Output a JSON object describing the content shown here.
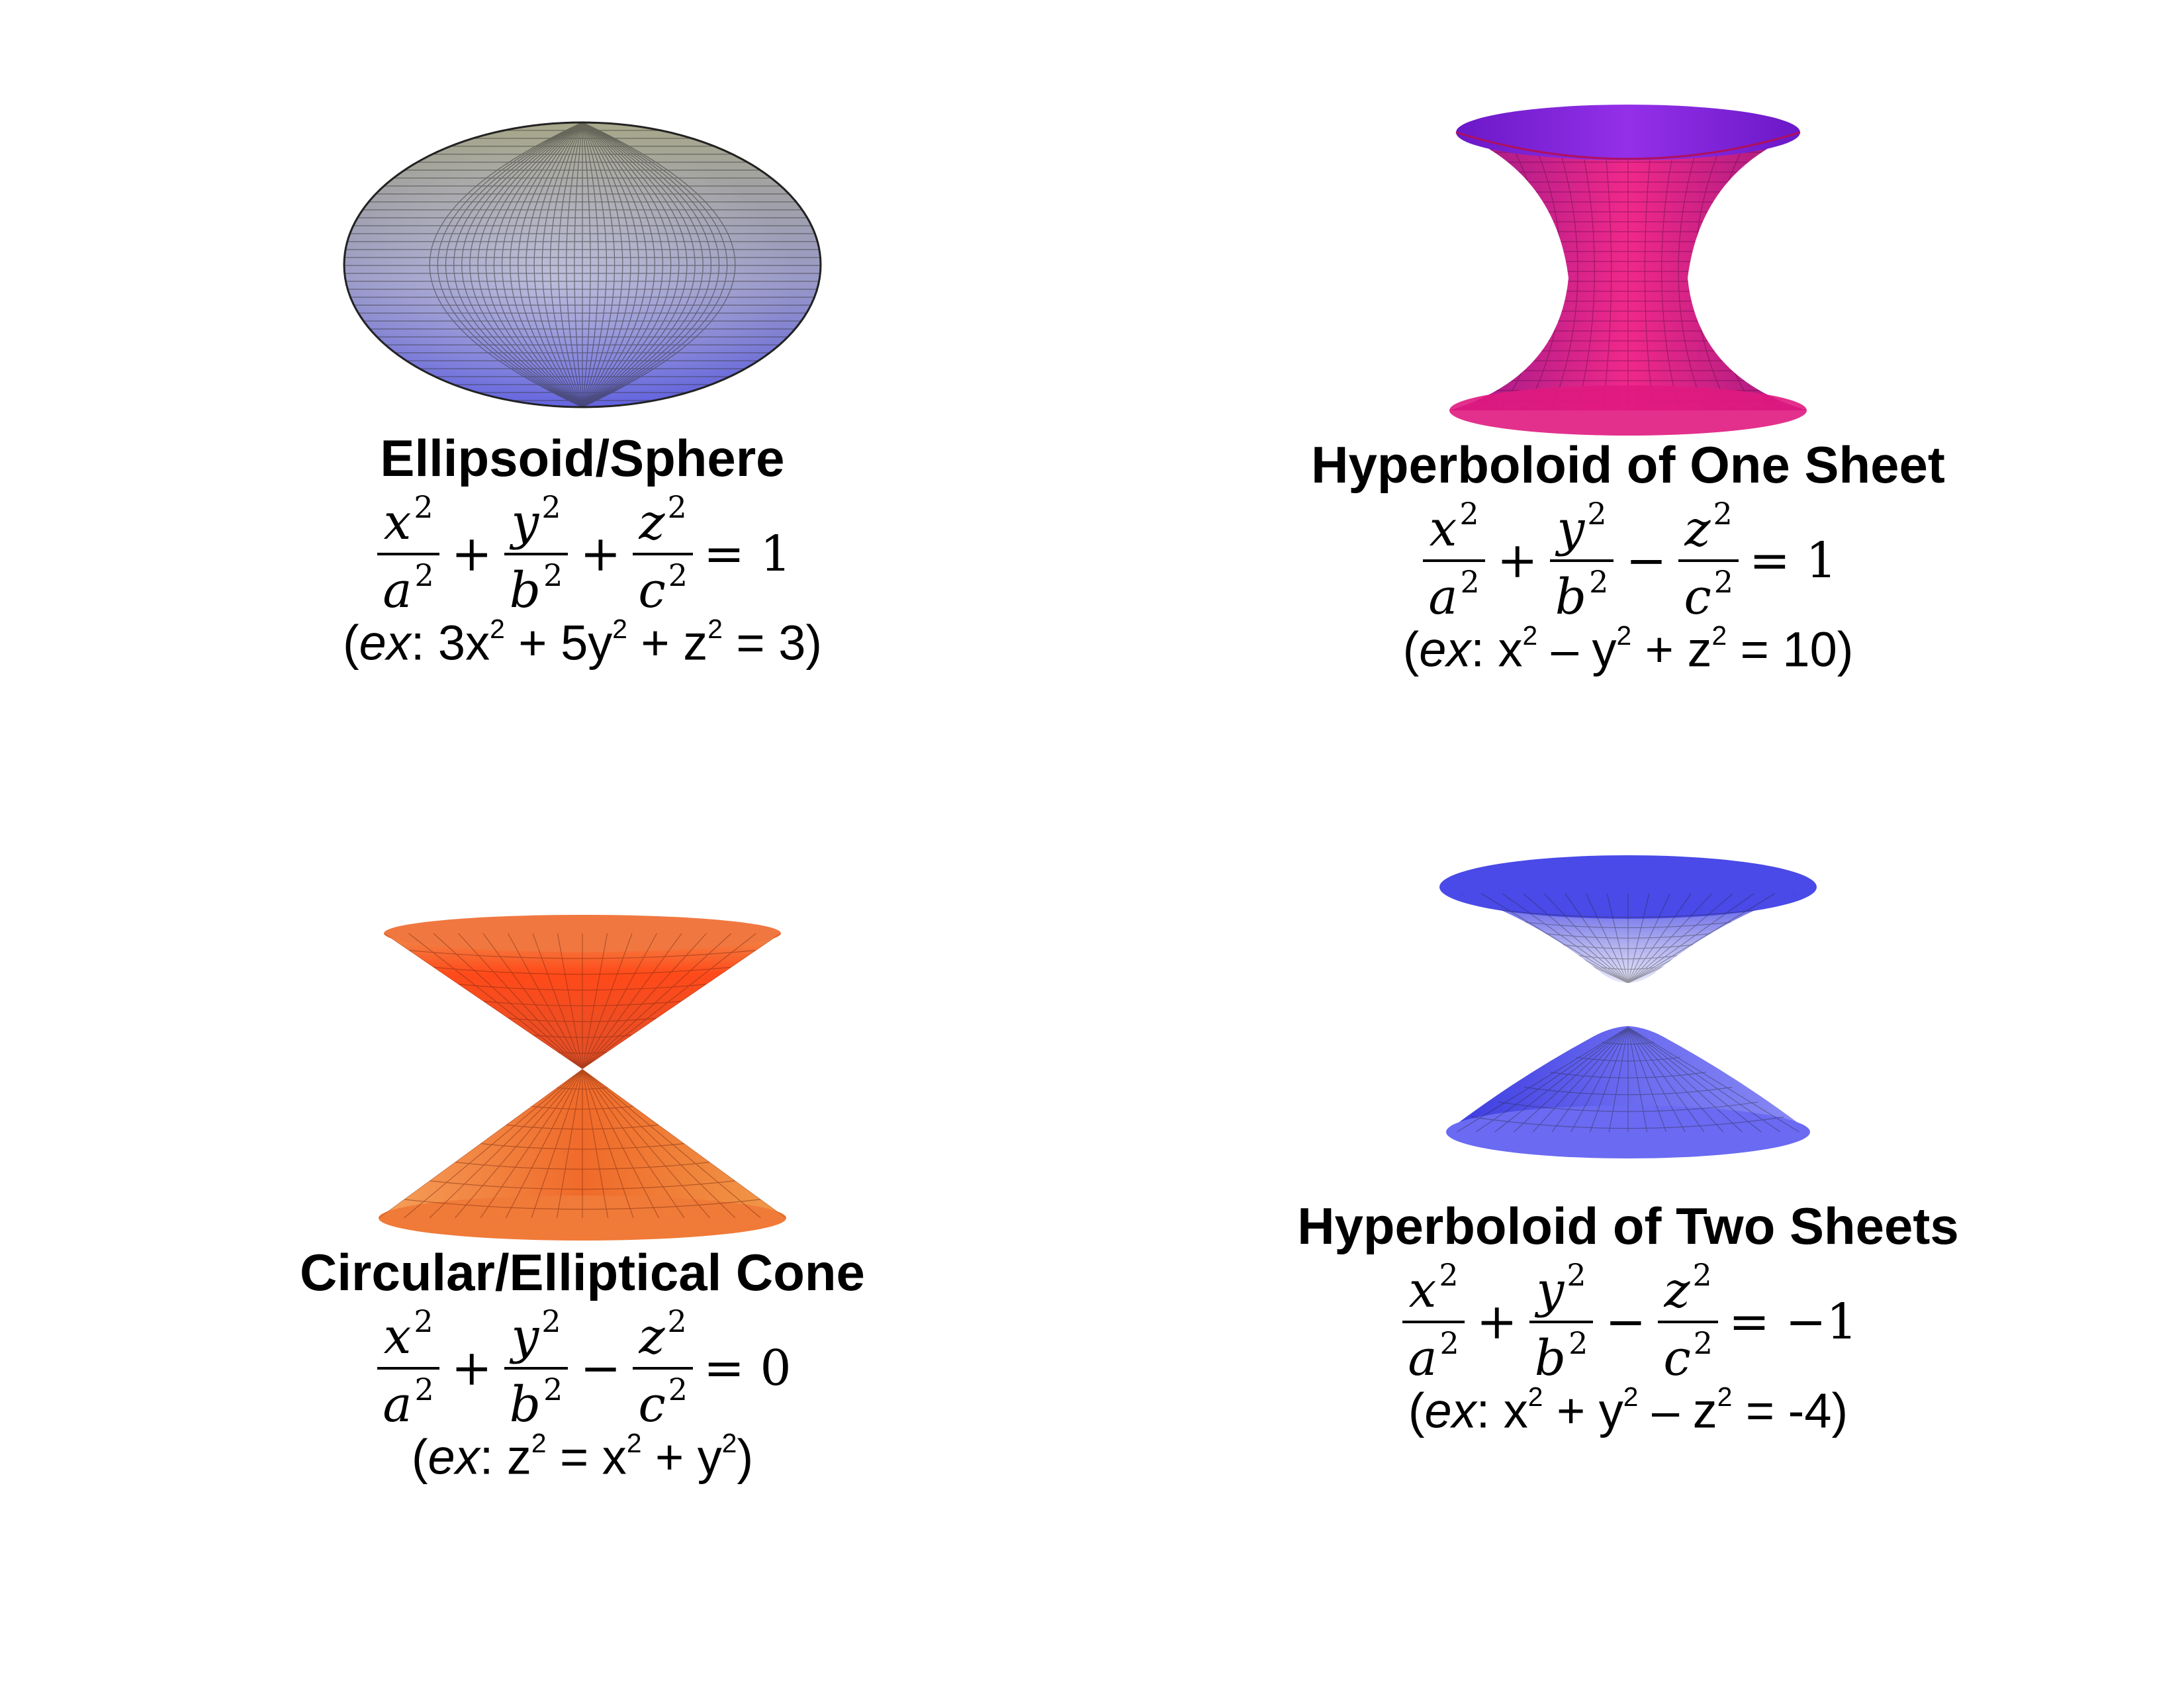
{
  "panels": [
    {
      "title": "Ellipsoid/Sphere",
      "eq": {
        "t1": "x",
        "d1": "a",
        "op1": "+",
        "t2": "y",
        "d2": "b",
        "op2": "+",
        "t3": "z",
        "d3": "c",
        "sq": "2",
        "rhs": "= 1"
      },
      "example": {
        "open": "(",
        "ex": "ex",
        "body": ": 3x",
        "s1": "2",
        "b2": " + 5y",
        "s2": "2",
        "b3": " + z",
        "s3": "2",
        "b4": " = 3)"
      }
    },
    {
      "title": "Hyperboloid of One Sheet",
      "eq": {
        "t1": "x",
        "d1": "a",
        "op1": "+",
        "t2": "y",
        "d2": "b",
        "op2": "−",
        "t3": "z",
        "d3": "c",
        "sq": "2",
        "rhs": "= 1"
      },
      "example": {
        "open": "(",
        "ex": "ex",
        "body": ": x",
        "s1": "2",
        "b2": " – y",
        "s2": "2",
        "b3": " + z",
        "s3": "2",
        "b4": " = 10)"
      }
    },
    {
      "title": "Circular/Elliptical Cone",
      "eq": {
        "t1": "x",
        "d1": "a",
        "op1": "+",
        "t2": "y",
        "d2": "b",
        "op2": "−",
        "t3": "z",
        "d3": "c",
        "sq": "2",
        "rhs": "= 0"
      },
      "example": {
        "open": "(",
        "ex": "ex",
        "body": ": z",
        "s1": "2",
        "b2": " = x",
        "s2": "2",
        "b3": " + y",
        "s3": "2",
        "b4": ")"
      }
    },
    {
      "title": "Hyperboloid of Two Sheets",
      "eq": {
        "t1": "x",
        "d1": "a",
        "op1": "+",
        "t2": "y",
        "d2": "b",
        "op2": "−",
        "t3": "z",
        "d3": "c",
        "sq": "2",
        "rhs": "= −1"
      },
      "example": {
        "open": "(",
        "ex": "ex",
        "body": ": x",
        "s1": "2",
        "b2": " + y",
        "s2": "2",
        "b3": " – z",
        "s3": "2",
        "b4": " = -4)"
      }
    }
  ],
  "colors": {
    "ellipsoid_top": "#a8a88a",
    "ellipsoid_bottom": "#6a6ae0",
    "one_sheet_top": "#7020d0",
    "one_sheet_body": "#e0207a",
    "cone": "#f06a2a",
    "two_sheets": "#4a4ae8"
  }
}
